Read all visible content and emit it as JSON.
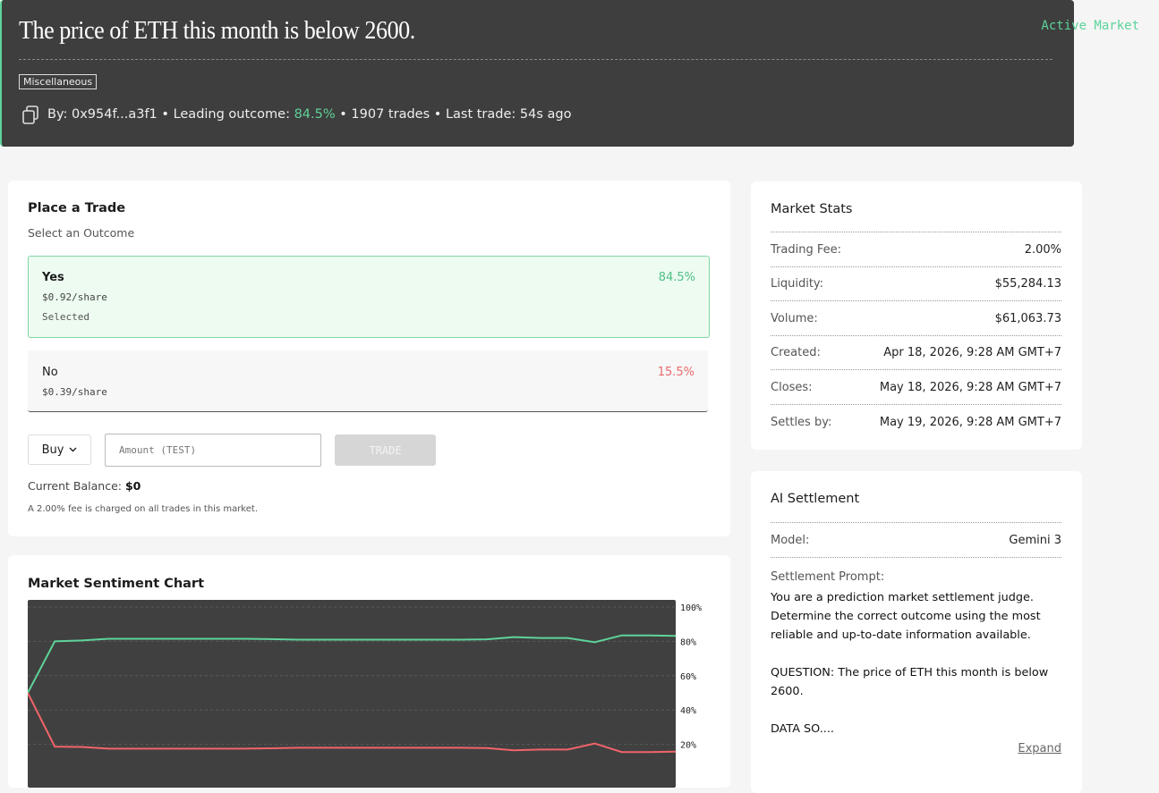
{
  "header": {
    "title": "The price of ETH this month is below 2600.",
    "status": "Active Market",
    "category": "Miscellaneous",
    "author": "By: 0x954f...a3f1",
    "separator": "•",
    "leading_label": "Leading outcome:",
    "leading_value": "84.5%",
    "trades": "1907 trades",
    "last_trade": "Last trade: 54s ago"
  },
  "trade": {
    "title": "Place a Trade",
    "subtitle": "Select an Outcome",
    "outcomes": [
      {
        "name": "Yes",
        "price": "$0.92/share",
        "status": "Selected",
        "percent": "84.5%"
      },
      {
        "name": "No",
        "price": "$0.39/share",
        "percent": "15.5%"
      }
    ],
    "side": "Buy",
    "amount_placeholder": "Amount (TEST)",
    "button": "TRADE",
    "balance_label": "Current Balance:",
    "balance": "$0",
    "fee_note": "A 2.00% fee is charged on all trades in this market."
  },
  "stats": {
    "title": "Market Stats",
    "rows": [
      [
        "Trading Fee:",
        "2.00%"
      ],
      [
        "Liquidity:",
        "$55,284.13"
      ],
      [
        "Volume:",
        "$61,063.73"
      ],
      [
        "Created:",
        "Apr 18, 2026, 9:28 AM GMT+7"
      ],
      [
        "Closes:",
        "May 18, 2026, 9:28 AM GMT+7"
      ],
      [
        "Settles by:",
        "May 19, 2026, 9:28 AM GMT+7"
      ]
    ]
  },
  "settlement": {
    "title": "AI Settlement",
    "model_label": "Model:",
    "model": "Gemini 3",
    "prompt_label": "Settlement Prompt:",
    "prompt": [
      "You are a prediction market settlement judge. Determine the correct outcome using the most reliable and up-to-date information available.",
      "QUESTION: The price of ETH this month is below 2600.",
      "DATA SO...."
    ],
    "expand": "Expand"
  },
  "sentiment": {
    "title": "Market Sentiment Chart",
    "chart_data": {
      "type": "line",
      "ylim": [
        0,
        100
      ],
      "yticks": [
        {
          "value": 20,
          "label": "20%"
        },
        {
          "value": 40,
          "label": "40%"
        },
        {
          "value": 60,
          "label": "60%"
        },
        {
          "value": 80,
          "label": "80%"
        },
        {
          "value": 100,
          "label": "100%"
        }
      ],
      "grid": true,
      "series": [
        {
          "color": "#5ed39a",
          "values": [
            50,
            80,
            80.5,
            81.5,
            81.5,
            81.5,
            81.5,
            81.5,
            81.5,
            81.3,
            81,
            81,
            81,
            81,
            81,
            81,
            81,
            81.2,
            82.5,
            82,
            82,
            79.5,
            83.5,
            83.5,
            83.2
          ]
        },
        {
          "color": "#f0646a",
          "values": [
            50,
            18.7,
            18.5,
            17.5,
            17.5,
            17.5,
            17.5,
            17.5,
            17.5,
            17.7,
            18,
            18,
            18,
            18,
            18,
            18,
            18,
            17.8,
            16.5,
            17,
            17,
            20.5,
            15.5,
            15.5,
            15.8
          ]
        }
      ]
    }
  }
}
